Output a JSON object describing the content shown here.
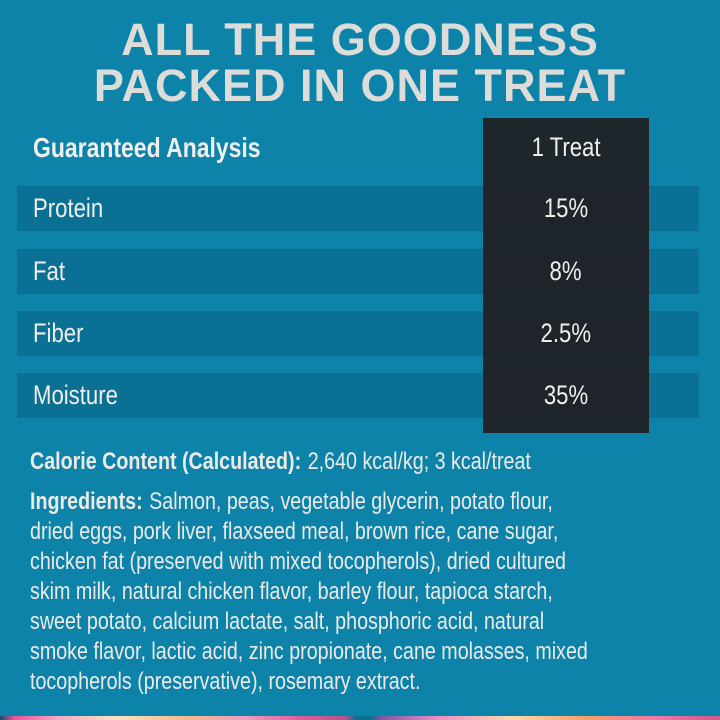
{
  "title": {
    "line1": "ALL THE GOODNESS",
    "line2": "PACKED IN ONE TREAT"
  },
  "table": {
    "header": {
      "label": "Guaranteed Analysis",
      "column": "1 Treat"
    },
    "rows": [
      {
        "label": "Protein",
        "value": "15%"
      },
      {
        "label": "Fat",
        "value": "8%"
      },
      {
        "label": "Fiber",
        "value": "2.5%"
      },
      {
        "label": "Moisture",
        "value": "35%"
      }
    ]
  },
  "calorie": {
    "label": "Calorie Content (Calculated):",
    "value": "2,640 kcal/kg; 3 kcal/treat"
  },
  "ingredients": {
    "label": "Ingredients:",
    "lines": [
      "Salmon, peas, vegetable glycerin, potato flour,",
      "dried eggs, pork liver, flaxseed meal, brown rice, cane sugar,",
      "chicken fat (preserved with mixed tocopherols), dried cultured",
      "skim milk, natural chicken flavor, barley flour, tapioca starch,",
      "sweet potato, calcium lactate, salt, phosphoric acid, natural",
      "smoke flavor, lactic acid, zinc propionate, cane molasses, mixed",
      "tocopherols (preservative), rosemary extract."
    ]
  },
  "colors": {
    "background": "#0d83aa",
    "row_stripe": "#0a7195",
    "value_column": "#1f2125",
    "text": "#f0efec",
    "title_text": "#dcdcd9"
  }
}
